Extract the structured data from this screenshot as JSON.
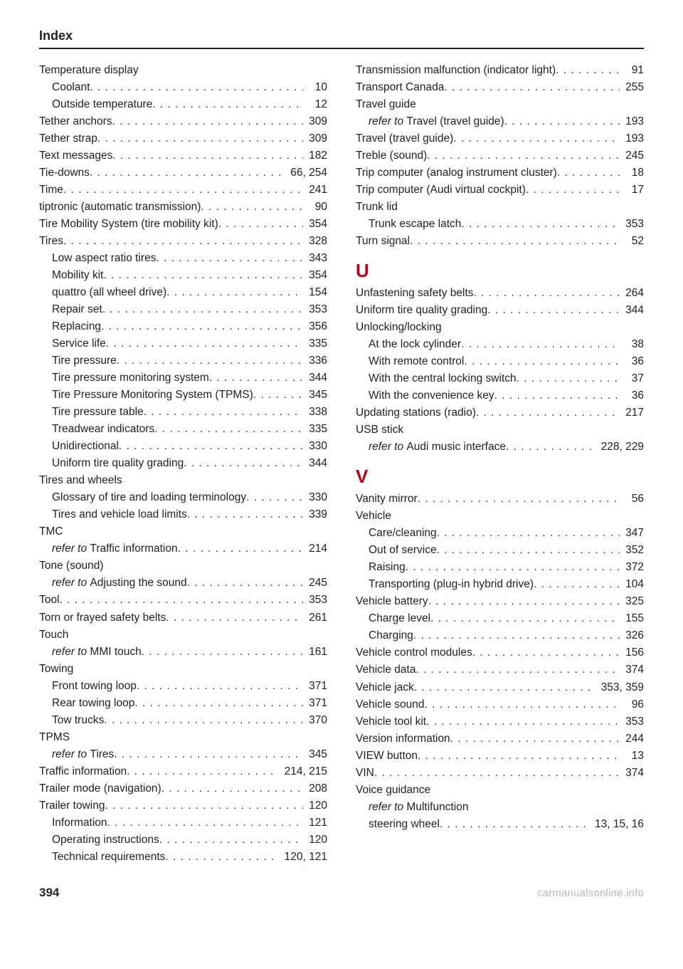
{
  "header": "Index",
  "pageNumber": "394",
  "brand": "carmanualsonline.info",
  "left": [
    {
      "type": "heading",
      "label": "Temperature display"
    },
    {
      "type": "sub",
      "label": "Coolant",
      "page": "10"
    },
    {
      "type": "sub",
      "label": "Outside temperature",
      "page": "12"
    },
    {
      "type": "entry",
      "label": "Tether anchors",
      "page": "309"
    },
    {
      "type": "entry",
      "label": "Tether strap",
      "page": "309"
    },
    {
      "type": "entry",
      "label": "Text messages",
      "page": "182"
    },
    {
      "type": "entry",
      "label": "Tie-downs",
      "page": "66, 254"
    },
    {
      "type": "entry",
      "label": "Time",
      "page": "241"
    },
    {
      "type": "entry",
      "label": "tiptronic (automatic transmission)",
      "page": "90"
    },
    {
      "type": "entry",
      "label": "Tire Mobility System (tire mobility kit)",
      "page": "354"
    },
    {
      "type": "entry",
      "label": "Tires",
      "page": "328"
    },
    {
      "type": "sub",
      "label": "Low aspect ratio tires",
      "page": "343"
    },
    {
      "type": "sub",
      "label": "Mobility kit",
      "page": "354"
    },
    {
      "type": "sub",
      "label": "quattro (all wheel drive)",
      "page": "154"
    },
    {
      "type": "sub",
      "label": "Repair set",
      "page": "353"
    },
    {
      "type": "sub",
      "label": "Replacing",
      "page": "356"
    },
    {
      "type": "sub",
      "label": "Service life",
      "page": "335"
    },
    {
      "type": "sub",
      "label": "Tire pressure",
      "page": "336"
    },
    {
      "type": "sub",
      "label": "Tire pressure monitoring system",
      "page": "344"
    },
    {
      "type": "sub",
      "label": "Tire Pressure Monitoring System (TPMS)",
      "page": "345"
    },
    {
      "type": "sub",
      "label": "Tire pressure table",
      "page": "338"
    },
    {
      "type": "sub",
      "label": "Treadwear indicators",
      "page": "335"
    },
    {
      "type": "sub",
      "label": "Unidirectional",
      "page": "330"
    },
    {
      "type": "sub",
      "label": "Uniform tire quality grading",
      "page": "344"
    },
    {
      "type": "heading",
      "label": "Tires and wheels"
    },
    {
      "type": "sub",
      "label": "Glossary of tire and loading terminology",
      "page": "330"
    },
    {
      "type": "sub",
      "label": "Tires and vehicle load limits",
      "page": "339"
    },
    {
      "type": "heading",
      "label": "TMC"
    },
    {
      "type": "sub",
      "prefix": "refer to ",
      "label": "Traffic information",
      "page": "214"
    },
    {
      "type": "heading",
      "label": "Tone (sound)"
    },
    {
      "type": "sub",
      "prefix": "refer to ",
      "label": "Adjusting the sound",
      "page": "245"
    },
    {
      "type": "entry",
      "label": "Tool",
      "page": "353"
    },
    {
      "type": "entry",
      "label": "Torn or frayed safety belts",
      "page": "261"
    },
    {
      "type": "heading",
      "label": "Touch"
    },
    {
      "type": "sub",
      "prefix": "refer to ",
      "label": "MMI touch",
      "page": "161"
    },
    {
      "type": "heading",
      "label": "Towing"
    },
    {
      "type": "sub",
      "label": "Front towing loop",
      "page": "371"
    },
    {
      "type": "sub",
      "label": "Rear towing loop",
      "page": "371"
    },
    {
      "type": "sub",
      "label": "Tow trucks",
      "page": "370"
    },
    {
      "type": "heading",
      "label": "TPMS"
    },
    {
      "type": "sub",
      "prefix": "refer to ",
      "label": "Tires",
      "page": "345"
    },
    {
      "type": "entry",
      "label": "Traffic information",
      "page": "214, 215"
    },
    {
      "type": "entry",
      "label": "Trailer mode (navigation)",
      "page": "208"
    },
    {
      "type": "entry",
      "label": "Trailer towing",
      "page": "120"
    },
    {
      "type": "sub",
      "label": "Information",
      "page": "121"
    },
    {
      "type": "sub",
      "label": "Operating instructions",
      "page": "120"
    },
    {
      "type": "sub",
      "label": "Technical requirements",
      "page": "120, 121"
    }
  ],
  "right": [
    {
      "type": "entry",
      "label": "Transmission malfunction (indicator light)",
      "page": "91"
    },
    {
      "type": "entry",
      "label": "Transport Canada",
      "page": "255"
    },
    {
      "type": "heading",
      "label": "Travel guide"
    },
    {
      "type": "sub",
      "prefix": "refer to ",
      "label": "Travel (travel guide)",
      "page": "193"
    },
    {
      "type": "entry",
      "label": "Travel (travel guide)",
      "page": "193"
    },
    {
      "type": "entry",
      "label": "Treble (sound)",
      "page": "245"
    },
    {
      "type": "entry",
      "label": "Trip computer (analog instrument cluster)",
      "page": "18"
    },
    {
      "type": "entry",
      "label": "Trip computer (Audi virtual cockpit)",
      "page": "17"
    },
    {
      "type": "heading",
      "label": "Trunk lid"
    },
    {
      "type": "sub",
      "label": "Trunk escape latch",
      "page": "353"
    },
    {
      "type": "entry",
      "label": "Turn signal",
      "page": "52"
    },
    {
      "type": "letter",
      "label": "U"
    },
    {
      "type": "entry",
      "label": "Unfastening safety belts",
      "page": "264"
    },
    {
      "type": "entry",
      "label": "Uniform tire quality grading",
      "page": "344"
    },
    {
      "type": "heading",
      "label": "Unlocking/locking"
    },
    {
      "type": "sub",
      "label": "At the lock cylinder",
      "page": "38"
    },
    {
      "type": "sub",
      "label": "With remote control",
      "page": "36"
    },
    {
      "type": "sub",
      "label": "With the central locking switch",
      "page": "37"
    },
    {
      "type": "sub",
      "label": "With the convenience key",
      "page": "36"
    },
    {
      "type": "entry",
      "label": "Updating stations (radio)",
      "page": "217"
    },
    {
      "type": "heading",
      "label": "USB stick"
    },
    {
      "type": "sub",
      "prefix": "refer to ",
      "label": "Audi music interface",
      "page": "228, 229"
    },
    {
      "type": "letter",
      "label": "V"
    },
    {
      "type": "entry",
      "label": "Vanity mirror",
      "page": "56"
    },
    {
      "type": "heading",
      "label": "Vehicle"
    },
    {
      "type": "sub",
      "label": "Care/cleaning",
      "page": "347"
    },
    {
      "type": "sub",
      "label": "Out of service",
      "page": "352"
    },
    {
      "type": "sub",
      "label": "Raising",
      "page": "372"
    },
    {
      "type": "sub",
      "label": "Transporting (plug-in hybrid drive)",
      "page": "104"
    },
    {
      "type": "entry",
      "label": "Vehicle battery",
      "page": "325"
    },
    {
      "type": "sub",
      "label": "Charge level",
      "page": "155"
    },
    {
      "type": "sub",
      "label": "Charging",
      "page": "326"
    },
    {
      "type": "entry",
      "label": "Vehicle control modules",
      "page": "156"
    },
    {
      "type": "entry",
      "label": "Vehicle data",
      "page": "374"
    },
    {
      "type": "entry",
      "label": "Vehicle jack",
      "page": "353, 359"
    },
    {
      "type": "entry",
      "label": "Vehicle sound",
      "page": "96"
    },
    {
      "type": "entry",
      "label": "Vehicle tool kit",
      "page": "353"
    },
    {
      "type": "entry",
      "label": "Version information",
      "page": "244"
    },
    {
      "type": "entry",
      "label": "VIEW button",
      "page": "13"
    },
    {
      "type": "entry",
      "label": "VIN",
      "page": "374"
    },
    {
      "type": "heading",
      "label": "Voice guidance"
    },
    {
      "type": "sub-heading",
      "prefix": "refer to ",
      "label": "Multifunction"
    },
    {
      "type": "sub",
      "label": "steering wheel",
      "page": "13, 15, 16"
    }
  ]
}
